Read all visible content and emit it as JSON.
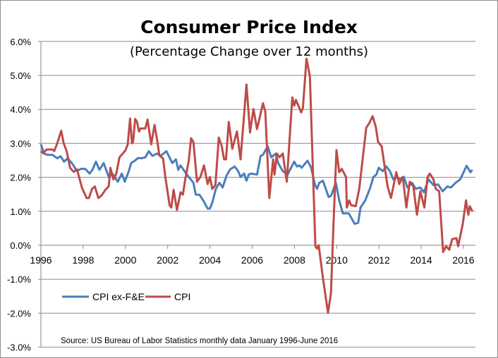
{
  "chart_data": {
    "type": "line",
    "title": "Consumer Price Index",
    "subtitle": "(Percentage Change over 12 months)",
    "xlabel": "",
    "ylabel": "",
    "xlim": [
      1996,
      2016.5
    ],
    "ylim": [
      -3.0,
      6.0
    ],
    "x_ticks": [
      "1996",
      "1998",
      "2000",
      "2002",
      "2004",
      "2006",
      "2008",
      "2010",
      "2012",
      "2014",
      "2016"
    ],
    "y_ticks": [
      "6.0%",
      "5.0%",
      "4.0%",
      "3.0%",
      "2.0%",
      "1.0%",
      "0.0%",
      "-1.0%",
      "-2.0%",
      "-3.0%"
    ],
    "grid": "horizontal",
    "legend_position": "bottom-left",
    "source": "Source: US Bureau of Labor Statistics monthly data  January 1996-June 2016",
    "series": [
      {
        "name": "CPI ex-F&E",
        "color": "#4a7ebb",
        "points": [
          [
            1996.0,
            2.97
          ],
          [
            1996.15,
            2.7
          ],
          [
            1996.32,
            2.66
          ],
          [
            1996.55,
            2.66
          ],
          [
            1996.77,
            2.56
          ],
          [
            1996.93,
            2.62
          ],
          [
            1997.1,
            2.46
          ],
          [
            1997.27,
            2.56
          ],
          [
            1997.5,
            2.39
          ],
          [
            1997.71,
            2.18
          ],
          [
            1997.88,
            2.25
          ],
          [
            1998.1,
            2.25
          ],
          [
            1998.3,
            2.11
          ],
          [
            1998.44,
            2.22
          ],
          [
            1998.6,
            2.46
          ],
          [
            1998.77,
            2.22
          ],
          [
            1998.97,
            2.42
          ],
          [
            1999.21,
            2.01
          ],
          [
            1999.38,
            2.11
          ],
          [
            1999.64,
            1.87
          ],
          [
            1999.83,
            2.11
          ],
          [
            1999.97,
            1.87
          ],
          [
            2000.16,
            2.18
          ],
          [
            2000.27,
            2.42
          ],
          [
            2000.44,
            2.49
          ],
          [
            2000.61,
            2.57
          ],
          [
            2000.77,
            2.56
          ],
          [
            2000.94,
            2.59
          ],
          [
            2001.11,
            2.77
          ],
          [
            2001.28,
            2.63
          ],
          [
            2001.5,
            2.7
          ],
          [
            2001.67,
            2.63
          ],
          [
            2001.94,
            2.77
          ],
          [
            2002.22,
            2.42
          ],
          [
            2002.39,
            2.53
          ],
          [
            2002.5,
            2.22
          ],
          [
            2002.61,
            2.35
          ],
          [
            2002.83,
            2.15
          ],
          [
            2003.0,
            2.01
          ],
          [
            2003.22,
            1.84
          ],
          [
            2003.33,
            1.49
          ],
          [
            2003.5,
            1.49
          ],
          [
            2003.61,
            1.39
          ],
          [
            2003.72,
            1.28
          ],
          [
            2003.89,
            1.08
          ],
          [
            2004.0,
            1.08
          ],
          [
            2004.11,
            1.25
          ],
          [
            2004.28,
            1.66
          ],
          [
            2004.45,
            1.84
          ],
          [
            2004.6,
            1.7
          ],
          [
            2004.78,
            2.04
          ],
          [
            2004.95,
            2.23
          ],
          [
            2005.17,
            2.32
          ],
          [
            2005.34,
            2.18
          ],
          [
            2005.45,
            2.01
          ],
          [
            2005.62,
            2.11
          ],
          [
            2005.73,
            1.9
          ],
          [
            2005.84,
            2.08
          ],
          [
            2005.95,
            2.11
          ],
          [
            2006.23,
            2.08
          ],
          [
            2006.4,
            2.63
          ],
          [
            2006.51,
            2.66
          ],
          [
            2006.73,
            2.92
          ],
          [
            2006.9,
            2.59
          ],
          [
            2007.12,
            2.7
          ],
          [
            2007.23,
            2.42
          ],
          [
            2007.45,
            2.18
          ],
          [
            2007.68,
            2.08
          ],
          [
            2007.84,
            2.28
          ],
          [
            2007.99,
            2.46
          ],
          [
            2008.12,
            2.32
          ],
          [
            2008.23,
            2.35
          ],
          [
            2008.34,
            2.28
          ],
          [
            2008.62,
            2.49
          ],
          [
            2008.79,
            2.28
          ],
          [
            2008.96,
            1.8
          ],
          [
            2009.07,
            1.66
          ],
          [
            2009.18,
            1.84
          ],
          [
            2009.35,
            1.9
          ],
          [
            2009.62,
            1.42
          ],
          [
            2009.74,
            1.46
          ],
          [
            2009.96,
            1.84
          ],
          [
            2010.12,
            1.32
          ],
          [
            2010.29,
            0.94
          ],
          [
            2010.57,
            0.94
          ],
          [
            2010.85,
            0.63
          ],
          [
            2011.02,
            0.66
          ],
          [
            2011.13,
            1.11
          ],
          [
            2011.35,
            1.32
          ],
          [
            2011.57,
            1.66
          ],
          [
            2011.74,
            2.01
          ],
          [
            2011.88,
            2.08
          ],
          [
            2011.99,
            2.28
          ],
          [
            2012.18,
            2.18
          ],
          [
            2012.35,
            2.32
          ],
          [
            2012.52,
            2.18
          ],
          [
            2012.68,
            1.94
          ],
          [
            2012.85,
            2.01
          ],
          [
            2013.02,
            1.94
          ],
          [
            2013.18,
            2.01
          ],
          [
            2013.35,
            1.7
          ],
          [
            2013.57,
            1.84
          ],
          [
            2013.74,
            1.66
          ],
          [
            2013.96,
            1.7
          ],
          [
            2014.13,
            1.56
          ],
          [
            2014.35,
            1.94
          ],
          [
            2014.58,
            1.77
          ],
          [
            2014.8,
            1.79
          ],
          [
            2015.02,
            1.59
          ],
          [
            2015.24,
            1.73
          ],
          [
            2015.41,
            1.7
          ],
          [
            2015.63,
            1.84
          ],
          [
            2015.85,
            1.94
          ],
          [
            2016.15,
            2.34
          ],
          [
            2016.33,
            2.15
          ],
          [
            2016.42,
            2.22
          ]
        ]
      },
      {
        "name": "CPI",
        "color": "#be4b48",
        "points": [
          [
            1996.0,
            2.77
          ],
          [
            1996.1,
            2.71
          ],
          [
            1996.27,
            2.82
          ],
          [
            1996.55,
            2.82
          ],
          [
            1996.63,
            2.77
          ],
          [
            1996.77,
            3.0
          ],
          [
            1996.96,
            3.37
          ],
          [
            1997.08,
            3.0
          ],
          [
            1997.22,
            2.77
          ],
          [
            1997.38,
            2.28
          ],
          [
            1997.55,
            2.16
          ],
          [
            1997.71,
            2.23
          ],
          [
            1997.94,
            1.7
          ],
          [
            1998.16,
            1.39
          ],
          [
            1998.27,
            1.39
          ],
          [
            1998.42,
            1.66
          ],
          [
            1998.55,
            1.73
          ],
          [
            1998.72,
            1.39
          ],
          [
            1998.88,
            1.47
          ],
          [
            1999.05,
            1.63
          ],
          [
            1999.21,
            1.73
          ],
          [
            1999.29,
            2.28
          ],
          [
            1999.43,
            1.94
          ],
          [
            1999.57,
            2.11
          ],
          [
            1999.72,
            2.59
          ],
          [
            2000.0,
            2.79
          ],
          [
            2000.11,
            2.97
          ],
          [
            2000.22,
            3.73
          ],
          [
            2000.31,
            3.0
          ],
          [
            2000.36,
            3.04
          ],
          [
            2000.46,
            3.72
          ],
          [
            2000.55,
            3.63
          ],
          [
            2000.64,
            3.35
          ],
          [
            2000.72,
            3.44
          ],
          [
            2000.94,
            3.44
          ],
          [
            2001.05,
            3.7
          ],
          [
            2001.22,
            2.97
          ],
          [
            2001.38,
            3.54
          ],
          [
            2001.5,
            3.11
          ],
          [
            2001.61,
            2.64
          ],
          [
            2001.78,
            2.56
          ],
          [
            2001.89,
            2.01
          ],
          [
            2002.09,
            1.18
          ],
          [
            2002.17,
            1.11
          ],
          [
            2002.28,
            1.63
          ],
          [
            2002.44,
            1.04
          ],
          [
            2002.61,
            1.56
          ],
          [
            2002.72,
            1.49
          ],
          [
            2002.83,
            1.94
          ],
          [
            2003.0,
            2.49
          ],
          [
            2003.11,
            3.15
          ],
          [
            2003.22,
            3.04
          ],
          [
            2003.39,
            1.87
          ],
          [
            2003.55,
            2.01
          ],
          [
            2003.72,
            2.35
          ],
          [
            2003.89,
            1.8
          ],
          [
            2004.0,
            2.01
          ],
          [
            2004.11,
            1.66
          ],
          [
            2004.26,
            1.77
          ],
          [
            2004.42,
            3.17
          ],
          [
            2004.56,
            2.91
          ],
          [
            2004.67,
            2.53
          ],
          [
            2004.76,
            2.53
          ],
          [
            2004.89,
            3.63
          ],
          [
            2005.06,
            2.84
          ],
          [
            2005.28,
            3.35
          ],
          [
            2005.45,
            2.53
          ],
          [
            2005.73,
            4.73
          ],
          [
            2005.9,
            3.32
          ],
          [
            2006.06,
            4.01
          ],
          [
            2006.23,
            3.42
          ],
          [
            2006.51,
            4.18
          ],
          [
            2006.62,
            3.94
          ],
          [
            2006.81,
            1.39
          ],
          [
            2006.99,
            2.53
          ],
          [
            2007.06,
            2.08
          ],
          [
            2007.17,
            2.7
          ],
          [
            2007.29,
            2.59
          ],
          [
            2007.45,
            2.7
          ],
          [
            2007.64,
            1.87
          ],
          [
            2007.9,
            4.35
          ],
          [
            2007.99,
            4.11
          ],
          [
            2008.07,
            4.28
          ],
          [
            2008.32,
            3.91
          ],
          [
            2008.4,
            4.04
          ],
          [
            2008.57,
            5.49
          ],
          [
            2008.73,
            4.98
          ],
          [
            2008.99,
            -0.03
          ],
          [
            2009.07,
            -0.1
          ],
          [
            2009.15,
            0.0
          ],
          [
            2009.35,
            -0.96
          ],
          [
            2009.59,
            -1.99
          ],
          [
            2009.73,
            -1.41
          ],
          [
            2009.85,
            0.63
          ],
          [
            2009.99,
            2.8
          ],
          [
            2010.12,
            2.15
          ],
          [
            2010.24,
            2.25
          ],
          [
            2010.44,
            2.01
          ],
          [
            2010.48,
            1.11
          ],
          [
            2010.59,
            1.32
          ],
          [
            2010.68,
            1.18
          ],
          [
            2010.9,
            1.15
          ],
          [
            2011.07,
            1.66
          ],
          [
            2011.4,
            3.46
          ],
          [
            2011.55,
            3.6
          ],
          [
            2011.7,
            3.8
          ],
          [
            2011.85,
            3.49
          ],
          [
            2011.96,
            3.04
          ],
          [
            2012.13,
            2.91
          ],
          [
            2012.41,
            1.73
          ],
          [
            2012.57,
            1.39
          ],
          [
            2012.82,
            2.15
          ],
          [
            2012.96,
            1.8
          ],
          [
            2013.13,
            2.01
          ],
          [
            2013.3,
            1.11
          ],
          [
            2013.46,
            1.87
          ],
          [
            2013.63,
            1.73
          ],
          [
            2013.8,
            0.9
          ],
          [
            2013.96,
            1.59
          ],
          [
            2014.15,
            1.11
          ],
          [
            2014.3,
            2.01
          ],
          [
            2014.41,
            2.11
          ],
          [
            2014.58,
            1.94
          ],
          [
            2014.69,
            1.66
          ],
          [
            2014.85,
            1.59
          ],
          [
            2015.04,
            -0.2
          ],
          [
            2015.18,
            -0.03
          ],
          [
            2015.33,
            -0.13
          ],
          [
            2015.47,
            0.18
          ],
          [
            2015.67,
            0.21
          ],
          [
            2015.75,
            -0.03
          ],
          [
            2015.97,
            0.63
          ],
          [
            2016.12,
            1.32
          ],
          [
            2016.23,
            0.9
          ],
          [
            2016.3,
            1.15
          ],
          [
            2016.42,
            1.0
          ]
        ]
      }
    ]
  }
}
